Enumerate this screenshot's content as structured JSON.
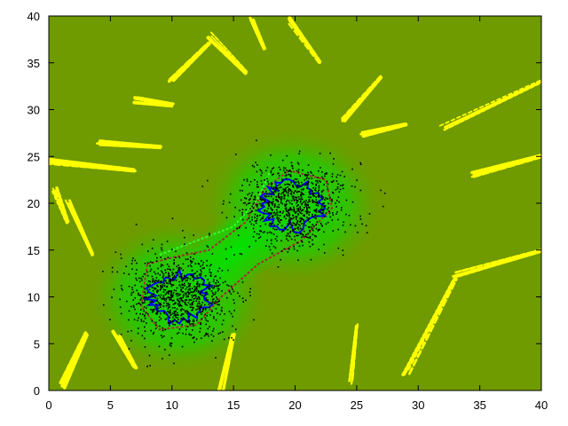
{
  "chart_data": {
    "type": "scatter",
    "title": "",
    "xlabel": "",
    "ylabel": "",
    "xlim": [
      0,
      40
    ],
    "ylim": [
      0,
      40
    ],
    "x_ticks": [
      "0",
      "5",
      "10",
      "15",
      "20",
      "25",
      "30",
      "35",
      "40"
    ],
    "y_ticks": [
      "0",
      "5",
      "10",
      "15",
      "20",
      "25",
      "30",
      "35",
      "40"
    ],
    "grid": false,
    "legend": "none",
    "background_color": "#6f9a00",
    "glow_color": "#00e400",
    "cluster_centers": [
      [
        10.5,
        10.0
      ],
      [
        19.8,
        19.8
      ]
    ],
    "series": [
      {
        "color": "#000000",
        "description_visual": "dense black scatter points around the two cluster centers",
        "centers": [
          [
            10.5,
            10.0
          ],
          [
            19.8,
            19.8
          ]
        ],
        "spread": 2.2,
        "count_per_cluster": 900
      },
      {
        "color": "#0000ff",
        "description_visual": "blue contour ring",
        "rings": [
          {
            "center": [
              10.5,
              10.0
            ],
            "radius": 2.4
          },
          {
            "center": [
              19.8,
              19.8
            ],
            "radius": 2.4
          }
        ]
      },
      {
        "color": "#a03030",
        "description_visual": "dark red contour enclosing both clusters",
        "path": [
          [
            8.0,
            13.5
          ],
          [
            10.0,
            14.2
          ],
          [
            13.0,
            15.0
          ],
          [
            16.0,
            18.0
          ],
          [
            17.5,
            21.5
          ],
          [
            19.5,
            23.5
          ],
          [
            22.5,
            22.5
          ],
          [
            23.0,
            19.5
          ],
          [
            20.5,
            16.0
          ],
          [
            17.0,
            13.5
          ],
          [
            14.0,
            10.0
          ],
          [
            12.0,
            7.0
          ],
          [
            9.0,
            6.5
          ],
          [
            7.5,
            9.0
          ],
          [
            8.0,
            13.5
          ]
        ]
      },
      {
        "color": "#33ff33",
        "description_visual": "bright green contour between clusters",
        "path": [
          [
            9.0,
            14.5
          ],
          [
            12.0,
            16.0
          ],
          [
            15.0,
            17.5
          ],
          [
            17.0,
            20.5
          ],
          [
            18.0,
            23.5
          ]
        ]
      },
      {
        "color": "#ffff00",
        "description_visual": "yellow streaks radiating outward",
        "streaks": [
          {
            "from": [
              10.0,
              33.0
            ],
            "to": [
              13.0,
              37.0
            ]
          },
          {
            "from": [
              13.0,
              38.0
            ],
            "to": [
              16.0,
              34.0
            ]
          },
          {
            "from": [
              16.5,
              39.5
            ],
            "to": [
              17.5,
              36.5
            ]
          },
          {
            "from": [
              19.5,
              39.5
            ],
            "to": [
              22.0,
              35.0
            ]
          },
          {
            "from": [
              24.0,
              29.0
            ],
            "to": [
              27.0,
              33.5
            ]
          },
          {
            "from": [
              25.5,
              27.5
            ],
            "to": [
              29.0,
              28.5
            ]
          },
          {
            "from": [
              32.0,
              28.0
            ],
            "to": [
              40.0,
              33.0
            ]
          },
          {
            "from": [
              34.5,
              23.0
            ],
            "to": [
              40.0,
              25.0
            ]
          },
          {
            "from": [
              33.0,
              12.5
            ],
            "to": [
              40.0,
              15.0
            ]
          },
          {
            "from": [
              29.0,
              2.0
            ],
            "to": [
              33.0,
              12.0
            ]
          },
          {
            "from": [
              24.5,
              1.0
            ],
            "to": [
              25.0,
              7.0
            ]
          },
          {
            "from": [
              14.0,
              0.0
            ],
            "to": [
              15.0,
              6.0
            ]
          },
          {
            "from": [
              5.5,
              6.0
            ],
            "to": [
              7.0,
              2.5
            ]
          },
          {
            "from": [
              1.0,
              0.5
            ],
            "to": [
              3.0,
              6.0
            ]
          },
          {
            "from": [
              1.5,
              20.0
            ],
            "to": [
              3.5,
              14.5
            ]
          },
          {
            "from": [
              0.0,
              24.5
            ],
            "to": [
              7.0,
              23.5
            ]
          },
          {
            "from": [
              4.0,
              26.5
            ],
            "to": [
              9.0,
              26.0
            ]
          },
          {
            "from": [
              7.0,
              31.0
            ],
            "to": [
              10.0,
              30.5
            ]
          },
          {
            "from": [
              0.5,
              21.5
            ],
            "to": [
              1.5,
              18.0
            ]
          }
        ]
      }
    ]
  }
}
